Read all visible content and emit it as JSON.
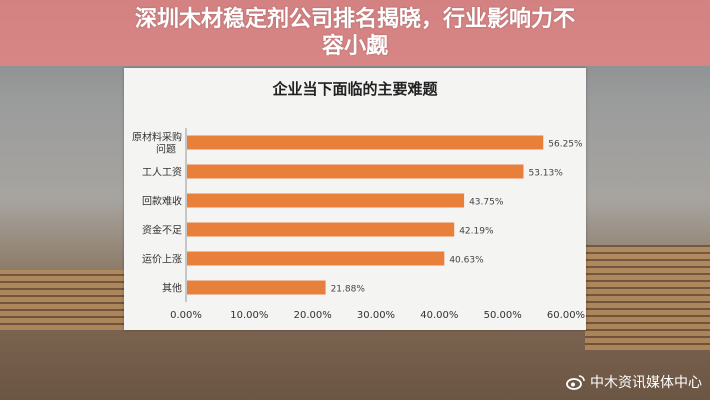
{
  "chart_data": {
    "type": "bar",
    "orientation": "horizontal",
    "title": "企业当下面临的主要难题",
    "categories": [
      "原材料采购问题",
      "工人工资",
      "回款难收",
      "资金不足",
      "运价上涨",
      "其他"
    ],
    "values": [
      56.25,
      53.13,
      43.75,
      42.19,
      40.63,
      21.88
    ],
    "value_labels": [
      "56.25%",
      "53.13%",
      "43.75%",
      "42.19%",
      "40.63%",
      "21.88%"
    ],
    "xlim": [
      0,
      60
    ],
    "x_ticks": [
      "0.00%",
      "10.00%",
      "20.00%",
      "30.00%",
      "40.00%",
      "50.00%",
      "60.00%"
    ],
    "bar_color": "#e8803c",
    "grid": false
  },
  "banner": {
    "line1": "深圳木材稳定剂公司排名揭晓，行业影响力不",
    "line2": "容小觑"
  },
  "watermark": {
    "text": "中木资讯媒体中心",
    "icon": "weibo-icon"
  }
}
